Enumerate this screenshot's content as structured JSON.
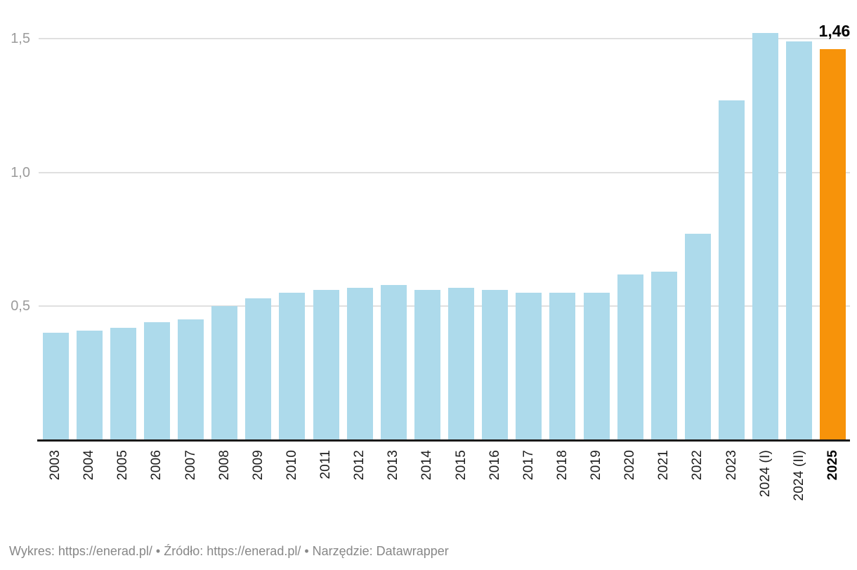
{
  "chart_data": {
    "type": "bar",
    "categories": [
      "2003",
      "2004",
      "2005",
      "2006",
      "2007",
      "2008",
      "2009",
      "2010",
      "2011",
      "2012",
      "2013",
      "2014",
      "2015",
      "2016",
      "2017",
      "2018",
      "2019",
      "2020",
      "2021",
      "2022",
      "2023",
      "2024 (I)",
      "2024 (II)",
      "2025"
    ],
    "values": [
      0.4,
      0.41,
      0.42,
      0.44,
      0.45,
      0.5,
      0.53,
      0.55,
      0.56,
      0.57,
      0.58,
      0.56,
      0.57,
      0.56,
      0.55,
      0.55,
      0.55,
      0.62,
      0.63,
      0.77,
      1.27,
      1.52,
      1.49,
      1.46
    ],
    "title": "",
    "xlabel": "",
    "ylabel": "",
    "ylim": [
      0,
      1.58
    ],
    "grid": true,
    "legend": "none",
    "yticks": [
      {
        "value": 0.5,
        "label": "0,5"
      },
      {
        "value": 1.0,
        "label": "1,0"
      },
      {
        "value": 1.5,
        "label": "1,5"
      }
    ],
    "bar_color": "#ADDAEB",
    "highlight_color": "#F7930A",
    "highlight_category": "2025",
    "value_label": "1,46"
  },
  "footer": {
    "text": "Wykres: https://enerad.pl/ • Źródło: https://enerad.pl/ • Narzędzie: Datawrapper"
  }
}
